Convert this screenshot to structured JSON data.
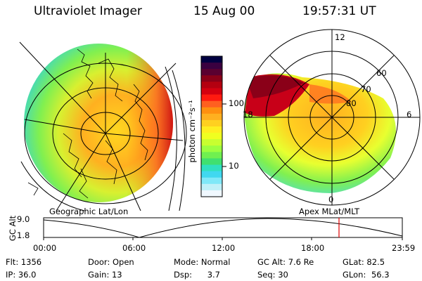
{
  "header": {
    "instrument": "Ultraviolet Imager",
    "date": "15 Aug 00",
    "time": "19:57:31 UT"
  },
  "left_panel": {
    "caption": "Geographic Lat/Lon"
  },
  "right_panel": {
    "caption": "Apex MLat/MLT",
    "mlt_labels": [
      "12",
      "6",
      "0",
      "18"
    ],
    "lat_labels": [
      "60",
      "70",
      "80"
    ]
  },
  "colorbar": {
    "unit_label": "photon cm⁻²s⁻¹",
    "ticks": [
      "100",
      "10"
    ],
    "colors": [
      "#000040",
      "#3a0040",
      "#5a0030",
      "#8a0018",
      "#b40010",
      "#d40010",
      "#ff1a10",
      "#ff6020",
      "#ff9010",
      "#ffb020",
      "#ffd020",
      "#ffee20",
      "#f0ff20",
      "#c8ff30",
      "#9cff40",
      "#70f050",
      "#40e070",
      "#30e0c0",
      "#40d8f0",
      "#80e8f8",
      "#c0f0f8",
      "#f0f8ff"
    ]
  },
  "altitude_plot": {
    "ylabel": "GC Alt",
    "yticks": [
      "9.0",
      "1.8"
    ],
    "xticks": [
      "00:00",
      "06:00",
      "12:00",
      "18:00",
      "23:59"
    ],
    "marker_color": "#e00000",
    "line_color": "#000000"
  },
  "info": {
    "flt_label": "Flt:",
    "flt_value": "1356",
    "ip_label": "IP:",
    "ip_value": "36.0",
    "door_label": "Door:",
    "door_value": "Open",
    "gain_label": "Gain:",
    "gain_value": "13",
    "mode_label": "Mode:",
    "mode_value": "Normal",
    "dsp_label": "Dsp:",
    "dsp_value": "3.7",
    "gcalt_label": "GC Alt:",
    "gcalt_value": "7.6 Re",
    "seq_label": "Seq:",
    "seq_value": "30",
    "glat_label": "GLat:",
    "glat_value": "82.5",
    "glon_label": "GLon:",
    "glon_value": "56.3"
  }
}
